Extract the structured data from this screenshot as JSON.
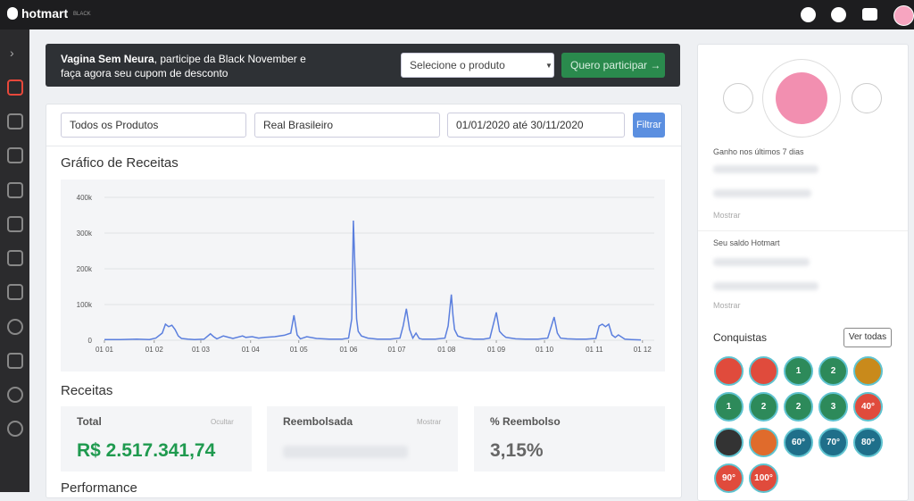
{
  "header": {
    "brand": "hotmart",
    "edition": "BLACK"
  },
  "banner": {
    "name": "Vagina Sem Neura",
    "message": ", participe da Black November e faça agora seu cupom de desconto",
    "select": "Selecione o produto",
    "button": "Quero participar"
  },
  "filters": {
    "products": "Todos os Produtos",
    "currency": "Real Brasileiro",
    "dates": "01/01/2020 até 30/11/2020",
    "submit": "Filtrar"
  },
  "chart_data": {
    "type": "line",
    "title": "Gráfico de Receitas",
    "color": "#5b7fde",
    "grid": true,
    "x": [
      0,
      10,
      20,
      28,
      32,
      36,
      38,
      40,
      42,
      44,
      46,
      48,
      52,
      56,
      62,
      66,
      68,
      70,
      74,
      80,
      86,
      88,
      92,
      96,
      100,
      106,
      112,
      116,
      118,
      120,
      122,
      126,
      132,
      140,
      148,
      152,
      154,
      155,
      156,
      157,
      158,
      160,
      164,
      170,
      178,
      184,
      186,
      188,
      190,
      192,
      194,
      196,
      198,
      200,
      206,
      212,
      214,
      216,
      217,
      218,
      220,
      224,
      230,
      236,
      240,
      244,
      246,
      248,
      250,
      256,
      262,
      270,
      276,
      280,
      282,
      284,
      288,
      294,
      300,
      306,
      308,
      310,
      312,
      314,
      316,
      318,
      320,
      324,
      328,
      334
    ],
    "values": [
      2000,
      2000,
      3000,
      2000,
      6000,
      20000,
      45000,
      38000,
      42000,
      30000,
      12000,
      5000,
      3000,
      2000,
      3000,
      18000,
      10000,
      4000,
      12000,
      5000,
      12000,
      8000,
      10000,
      6000,
      8000,
      10000,
      14000,
      20000,
      70000,
      15000,
      4000,
      10000,
      5000,
      3000,
      3000,
      6000,
      60000,
      335000,
      200000,
      60000,
      25000,
      12000,
      6000,
      3000,
      3000,
      6000,
      40000,
      88000,
      30000,
      6000,
      20000,
      5000,
      3000,
      3000,
      3000,
      6000,
      40000,
      128000,
      70000,
      30000,
      12000,
      6000,
      3000,
      3000,
      6000,
      78000,
      25000,
      15000,
      8000,
      4000,
      3000,
      3000,
      6000,
      65000,
      20000,
      6000,
      4000,
      3000,
      3000,
      5000,
      40000,
      45000,
      38000,
      45000,
      15000,
      8000,
      15000,
      3000,
      2000,
      1000
    ],
    "xlim": [
      0,
      334
    ],
    "xticks": [
      {
        "value": 0,
        "label": "01 01"
      },
      {
        "value": 31,
        "label": "01 02"
      },
      {
        "value": 60,
        "label": "01 03"
      },
      {
        "value": 91,
        "label": "01 04"
      },
      {
        "value": 121,
        "label": "01 05"
      },
      {
        "value": 152,
        "label": "01 06"
      },
      {
        "value": 182,
        "label": "01 07"
      },
      {
        "value": 213,
        "label": "01 08"
      },
      {
        "value": 244,
        "label": "01 09"
      },
      {
        "value": 274,
        "label": "01 10"
      },
      {
        "value": 305,
        "label": "01 11"
      },
      {
        "value": 335,
        "label": "01 12"
      }
    ],
    "ylim": [
      0,
      400000
    ],
    "yticks": [
      0,
      {
        "value": 100000,
        "label": "100k"
      },
      {
        "value": 200000,
        "label": "200k"
      },
      {
        "value": 300000,
        "label": "300k"
      },
      {
        "value": 400000,
        "label": "400k"
      }
    ]
  },
  "revenue": {
    "title": "Receitas",
    "total_label": "Total",
    "total_toggle": "Ocultar",
    "total_value": "R$ 2.517.341,74",
    "refunded_label": "Reembolsada",
    "refunded_toggle": "Mostrar",
    "refund_pct_label": "% Reembolso",
    "refund_pct_value": "3,15%"
  },
  "performance": "Performance",
  "side": {
    "week_label": "Ganho nos últimos 7 dias",
    "week_toggle": "Mostrar",
    "balance_label": "Seu saldo Hotmart",
    "balance_toggle": "Mostrar",
    "achievements": "Conquistas",
    "see_all": "Ver todas",
    "badges": [
      "1",
      "2",
      "1",
      "2",
      "2",
      "3",
      "40°",
      "60°",
      "70°",
      "80°",
      "90°",
      "100°"
    ]
  }
}
